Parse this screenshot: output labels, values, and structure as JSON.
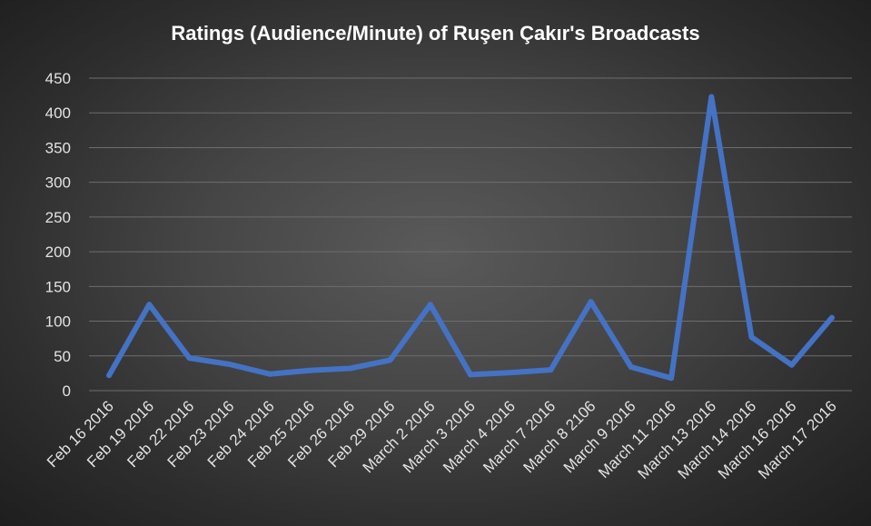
{
  "chart_data": {
    "type": "line",
    "title": "Ratings (Audience/Minute) of Ruşen Çakır's Broadcasts",
    "xlabel": "",
    "ylabel": "",
    "categories": [
      "Feb 16 2016",
      "Feb 19 2016",
      "Feb 22 2016",
      "Feb 23 2016",
      "Feb 24 2016",
      "Feb 25 2016",
      "Feb 26 2016",
      "Feb 29 2016",
      "March 2 2016",
      "March 3 2016",
      "March 4 2016",
      "March 7 2016",
      "March 8 2106",
      "March 9 2016",
      "March 11 2016",
      "March 13 2016",
      "March 14 2016",
      "March 16 2016",
      "March 17 2016"
    ],
    "series": [
      {
        "values": [
          22,
          124,
          47,
          38,
          24,
          29,
          32,
          44,
          124,
          23,
          26,
          30,
          128,
          34,
          18,
          423,
          77,
          37,
          105
        ]
      }
    ],
    "ylim": [
      0,
      450
    ],
    "yticks": [
      0,
      50,
      100,
      150,
      200,
      250,
      300,
      350,
      400,
      450
    ],
    "grid": true,
    "legend": "none",
    "colors": {
      "line": "#4472c4",
      "text": "#e2e2e2",
      "grid": "#6d6d6d"
    }
  }
}
